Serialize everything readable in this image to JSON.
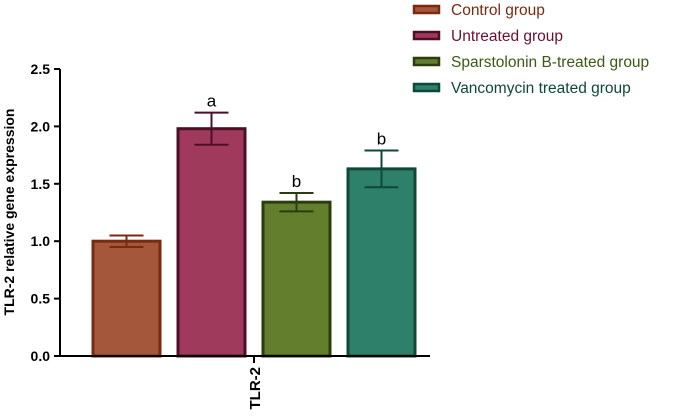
{
  "chart_data": {
    "type": "bar",
    "ylabel": "TLR-2 relative gene expression",
    "xlabel": "",
    "categories": [
      "TLR-2"
    ],
    "ylim": [
      0,
      2.5
    ],
    "yticks": [
      "0.0",
      "0.5",
      "1.0",
      "1.5",
      "2.0",
      "2.5"
    ],
    "grid": false,
    "legend_position": "top-right",
    "series": [
      {
        "name": "Control group",
        "value": 1.0,
        "error": 0.05,
        "letter": "",
        "fill": "#a4573a",
        "stroke": "#7a2a10",
        "legend_text_color": "#7a2a10"
      },
      {
        "name": "Untreated group",
        "value": 1.98,
        "error": 0.14,
        "letter": "a",
        "fill": "#a03a5c",
        "stroke": "#4d0f28",
        "legend_text_color": "#6a1033"
      },
      {
        "name": "Sparstolonin B-treated group",
        "value": 1.34,
        "error": 0.08,
        "letter": "b",
        "fill": "#637f2e",
        "stroke": "#2a3d0f",
        "legend_text_color": "#3c5a12"
      },
      {
        "name": "Vancomycin treated group",
        "value": 1.63,
        "error": 0.16,
        "letter": "b",
        "fill": "#2f806a",
        "stroke": "#0e4838",
        "legend_text_color": "#0e4838"
      }
    ]
  }
}
